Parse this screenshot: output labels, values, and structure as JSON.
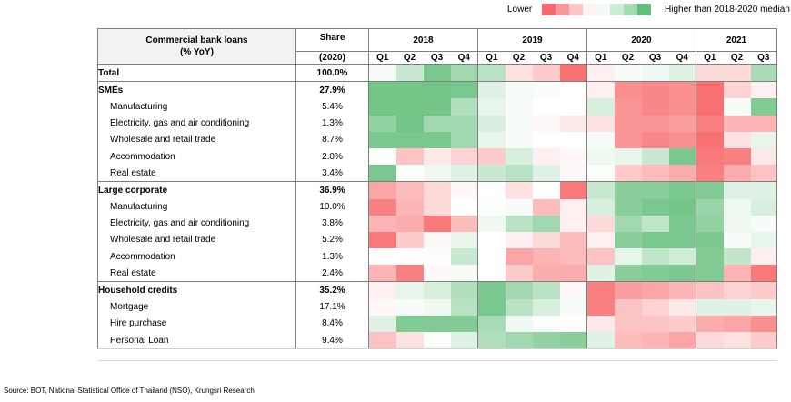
{
  "legend": {
    "lower_label": "Lower",
    "higher_label": "Higher than 2018-2020 median",
    "swatches": [
      "#f8696b",
      "#f9989a",
      "#fbc6c8",
      "#fdf3f3",
      "#f3faf5",
      "#cdebd4",
      "#a5dbb0",
      "#63be7b"
    ]
  },
  "header": {
    "title_line1": "Commercial bank loans",
    "title_line2": "(% YoY)",
    "share_line1": "Share",
    "share_line2": "(2020)",
    "years": [
      {
        "label": "2018",
        "quarters": [
          "Q1",
          "Q2",
          "Q3",
          "Q4"
        ]
      },
      {
        "label": "2019",
        "quarters": [
          "Q1",
          "Q2",
          "Q3",
          "Q4"
        ]
      },
      {
        "label": "2020",
        "quarters": [
          "Q1",
          "Q2",
          "Q3",
          "Q4"
        ]
      },
      {
        "label": "2021",
        "quarters": [
          "Q1",
          "Q2",
          "Q3"
        ]
      }
    ]
  },
  "chart_data": {
    "type": "heatmap",
    "title": "Commercial bank loans (% YoY)",
    "legend": [
      "Lower",
      "Higher than 2018-2020 median"
    ],
    "color_scale": {
      "low": "#f8696b",
      "mid": "#ffffff",
      "high": "#63be7b"
    },
    "columns": [
      "2018 Q1",
      "2018 Q2",
      "2018 Q3",
      "2018 Q4",
      "2019 Q1",
      "2019 Q2",
      "2019 Q3",
      "2019 Q4",
      "2020 Q1",
      "2020 Q2",
      "2020 Q3",
      "2020 Q4",
      "2021 Q1",
      "2021 Q2",
      "2021 Q3"
    ],
    "rows": [
      {
        "name": "Total",
        "level": "group",
        "share": "100.0%",
        "values": [
          0.05,
          0.35,
          0.85,
          0.6,
          0.45,
          -0.2,
          -0.35,
          -0.95,
          -0.1,
          0.05,
          0.1,
          0.2,
          -0.25,
          -0.25,
          0.55
        ]
      },
      {
        "name": "SMEs",
        "level": "group",
        "share": "27.9%",
        "values": [
          0.9,
          0.9,
          0.9,
          0.85,
          0.2,
          0.05,
          0.03,
          0.0,
          -0.1,
          -0.75,
          -0.8,
          -0.75,
          -0.95,
          -0.3,
          -0.1
        ]
      },
      {
        "name": "Manufacturing",
        "level": "sub",
        "share": "5.4%",
        "values": [
          0.9,
          0.9,
          0.9,
          0.5,
          0.15,
          0.05,
          0.0,
          0.0,
          0.25,
          -0.7,
          -0.8,
          -0.75,
          -0.95,
          0.05,
          0.8
        ]
      },
      {
        "name": "Electricity, gas and air conditioning",
        "level": "sub",
        "share": "1.3%",
        "values": [
          0.7,
          0.9,
          0.6,
          0.6,
          0.25,
          0.05,
          -0.05,
          -0.15,
          -0.2,
          -0.7,
          -0.7,
          -0.65,
          -0.85,
          -0.5,
          -0.5
        ]
      },
      {
        "name": "Wholesale and retail trade",
        "level": "sub",
        "share": "8.7%",
        "values": [
          0.85,
          0.85,
          0.85,
          0.6,
          0.15,
          0.05,
          0.0,
          0.0,
          0.05,
          -0.7,
          -0.8,
          -0.75,
          -0.95,
          -0.2,
          0.15
        ]
      },
      {
        "name": "Accommodation",
        "level": "sub",
        "share": "2.0%",
        "values": [
          0.02,
          -0.4,
          -0.15,
          -0.3,
          -0.35,
          0.25,
          -0.1,
          -0.05,
          0.1,
          0.15,
          0.35,
          0.85,
          -0.9,
          -0.85,
          -0.15
        ]
      },
      {
        "name": "Real estate",
        "level": "sub",
        "share": "3.4%",
        "values": [
          0.85,
          0.02,
          0.1,
          0.2,
          0.35,
          0.45,
          0.2,
          -0.05,
          0.02,
          -0.35,
          -0.45,
          -0.55,
          -0.85,
          -0.55,
          -0.4
        ]
      },
      {
        "name": "Large corporate",
        "level": "group",
        "share": "36.9%",
        "values": [
          -0.6,
          -0.45,
          -0.25,
          -0.05,
          0.0,
          -0.2,
          0.0,
          -0.9,
          0.35,
          0.75,
          0.75,
          0.85,
          0.8,
          0.2,
          0.2
        ]
      },
      {
        "name": "Manufacturing",
        "level": "sub",
        "share": "10.0%",
        "values": [
          -0.85,
          -0.5,
          -0.25,
          0.0,
          0.02,
          0.05,
          -0.45,
          -0.1,
          0.25,
          0.75,
          0.85,
          0.9,
          0.65,
          0.1,
          0.25
        ]
      },
      {
        "name": "Electricity, gas and air conditioning",
        "level": "sub",
        "share": "3.8%",
        "values": [
          -0.5,
          -0.55,
          -0.9,
          -0.45,
          0.1,
          0.45,
          0.6,
          -0.1,
          -0.25,
          0.6,
          0.4,
          0.85,
          0.7,
          0.1,
          0.05
        ]
      },
      {
        "name": "Wholesale and retail trade",
        "level": "sub",
        "share": "5.2%",
        "values": [
          -0.9,
          -0.35,
          -0.05,
          0.15,
          0.0,
          -0.1,
          -0.25,
          -0.45,
          -0.1,
          0.75,
          0.85,
          0.85,
          0.85,
          0.05,
          0.15
        ]
      },
      {
        "name": "Accommodation",
        "level": "sub",
        "share": "1.3%",
        "values": [
          0.0,
          0.0,
          0.02,
          0.35,
          0.0,
          -0.6,
          -0.5,
          -0.45,
          -0.4,
          0.15,
          0.4,
          0.3,
          0.8,
          0.4,
          -0.1
        ]
      },
      {
        "name": "Real estate",
        "level": "sub",
        "share": "2.4%",
        "values": [
          -0.5,
          -0.85,
          -0.05,
          0.05,
          0.0,
          -0.35,
          -0.55,
          -0.55,
          0.2,
          0.75,
          0.8,
          0.85,
          0.8,
          -0.5,
          -0.9
        ]
      },
      {
        "name": "Household credits",
        "level": "group",
        "share": "35.2%",
        "values": [
          -0.1,
          0.15,
          0.25,
          0.5,
          0.85,
          0.6,
          0.45,
          -0.05,
          -0.85,
          -0.65,
          -0.6,
          -0.5,
          -0.4,
          -0.3,
          -0.35
        ]
      },
      {
        "name": "Mortgage",
        "level": "sub",
        "share": "17.1%",
        "values": [
          -0.05,
          0.05,
          0.1,
          0.45,
          0.85,
          0.45,
          0.25,
          0.05,
          -0.85,
          -0.4,
          -0.3,
          -0.15,
          0.2,
          0.2,
          0.15
        ]
      },
      {
        "name": "Hire purchase",
        "level": "sub",
        "share": "8.4%",
        "values": [
          0.2,
          0.8,
          0.8,
          0.8,
          0.55,
          0.1,
          0.02,
          -0.02,
          -0.15,
          -0.4,
          -0.4,
          -0.35,
          -0.55,
          -0.6,
          -0.75
        ]
      },
      {
        "name": "Personal Loan",
        "level": "sub",
        "share": "9.4%",
        "values": [
          -0.4,
          -0.2,
          0.02,
          0.2,
          0.5,
          0.6,
          0.7,
          0.75,
          0.2,
          -0.45,
          -0.5,
          -0.6,
          -0.25,
          -0.2,
          -0.35
        ]
      }
    ]
  },
  "source_text": "Source: BOT, National Statistical Office of Thailand (NSO), Krungsri Research"
}
